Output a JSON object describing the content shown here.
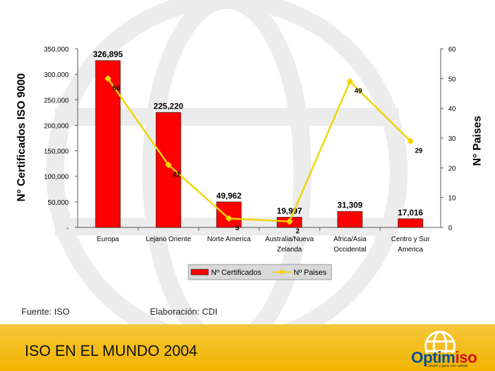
{
  "chart_data": {
    "type": "bar",
    "categories": [
      [
        "Europa"
      ],
      [
        "Lejano Oriente"
      ],
      [
        "Norte America"
      ],
      [
        "Australia/Nueva",
        "Zelanda"
      ],
      [
        "Africa/Asia",
        "Occidental"
      ],
      [
        "Centro y Sur",
        "America"
      ]
    ],
    "series": [
      {
        "name": "Nº Certificados",
        "type": "bar",
        "axis": "left",
        "color": "#ff0000",
        "values": [
          326895,
          225220,
          49962,
          19997,
          31309,
          17016
        ],
        "labels": [
          "326,895",
          "225,220",
          "49,962",
          "19,997",
          "31,309",
          "17,016"
        ]
      },
      {
        "name": "Nº Paises",
        "type": "line",
        "axis": "right",
        "color": "#f2d400",
        "values": [
          50,
          21,
          3,
          2,
          49,
          29
        ],
        "labels": [
          "50",
          "21",
          "3",
          "2",
          "49",
          "29"
        ]
      }
    ],
    "ylabel": "N° Certificados ISO 9000",
    "y2label": "N° Paises",
    "ylim": [
      0,
      350000
    ],
    "y2lim": [
      0,
      60
    ],
    "yticks": [
      "-",
      "50,000",
      "100,000",
      "150,000",
      "200,000",
      "250,000",
      "300,000",
      "350,000"
    ],
    "y2ticks": [
      "0",
      "10",
      "20",
      "30",
      "40",
      "50",
      "60"
    ],
    "legend_placement": "bottom-center",
    "grid": false
  },
  "source_left": "Fuente: ISO",
  "source_right": "Elaboración: CDI",
  "footer_title": "ISO EN EL MUNDO 2004",
  "logo": {
    "part1": "Optim",
    "part2": "iso",
    "tagline": "Cumplir y gane con calidad"
  },
  "colors": {
    "footer": "#f2b400",
    "logo_blue": "#0a4f8f",
    "logo_red": "#d4141b"
  }
}
